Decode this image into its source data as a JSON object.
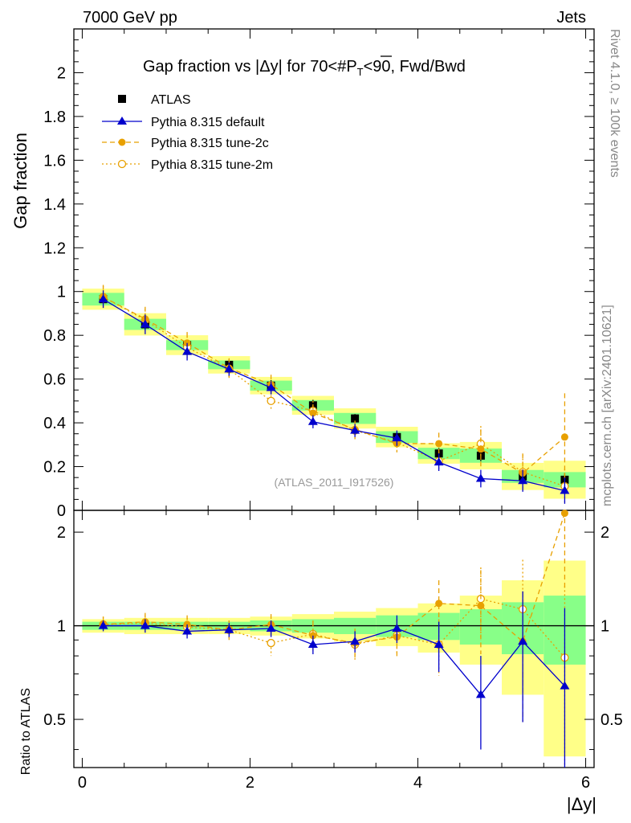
{
  "header": {
    "left": "7000 GeV pp",
    "right": "Jets"
  },
  "side": {
    "rivet": "Rivet 4.1.0, ≥ 100k events",
    "mcplots": "mcplots.cern.ch [arXiv:2401.10621]"
  },
  "chart_data": {
    "type": "line",
    "title": "Gap fraction vs |Δy| for 70<#P_T<90, Fwd/Bwd",
    "title_parts": {
      "main": "Gap fraction vs |Δy| for 70<#",
      "p": "P",
      "t": "T",
      "tail": "<90, Fwd/Bwd"
    },
    "watermark": "(ATLAS_2011_I917526)",
    "xlabel": "|Δy|",
    "ylabel": "Gap fraction",
    "ratio_ylabel": "Ratio to ATLAS",
    "xlim": [
      -0.1,
      6.1
    ],
    "ylim": [
      0,
      2.2
    ],
    "ratio_ylim": [
      0.35,
      2.35
    ],
    "x_ticks": [
      "0",
      "2",
      "4",
      "6"
    ],
    "y_ticks": [
      "0",
      "0.2",
      "0.4",
      "0.6",
      "0.8",
      "1",
      "1.2",
      "1.4",
      "1.6",
      "1.8",
      "2"
    ],
    "ratio_y_ticks": [
      "0.5",
      "1",
      "2"
    ],
    "x": [
      0.25,
      0.75,
      1.25,
      1.75,
      2.25,
      2.75,
      3.25,
      3.75,
      4.25,
      4.75,
      5.25,
      5.75
    ],
    "data": {
      "name": "ATLAS",
      "values": [
        0.965,
        0.85,
        0.755,
        0.665,
        0.57,
        0.48,
        0.42,
        0.335,
        0.26,
        0.25,
        0.155,
        0.14
      ],
      "errors": [
        0.02,
        0.025,
        0.025,
        0.025,
        0.025,
        0.025,
        0.02,
        0.02,
        0.025,
        0.025,
        0.03,
        0.03
      ]
    },
    "band": {
      "inner": [
        0.03,
        0.03,
        0.03,
        0.03,
        0.04,
        0.05,
        0.06,
        0.08,
        0.1,
        0.13,
        0.19,
        0.25
      ],
      "outer": [
        0.05,
        0.06,
        0.06,
        0.06,
        0.07,
        0.09,
        0.11,
        0.14,
        0.18,
        0.25,
        0.4,
        0.62
      ]
    },
    "series": [
      {
        "name": "Pythia 8.315 default",
        "color": "#0000cc",
        "marker": "triangle",
        "dash": "",
        "values": [
          0.965,
          0.85,
          0.725,
          0.645,
          0.56,
          0.405,
          0.365,
          0.33,
          0.22,
          0.145,
          0.135,
          0.09
        ],
        "errors": [
          0.04,
          0.045,
          0.04,
          0.03,
          0.03,
          0.03,
          0.03,
          0.035,
          0.04,
          0.04,
          0.05,
          0.06
        ],
        "ratio": [
          1.0,
          1.0,
          0.96,
          0.97,
          0.98,
          0.87,
          0.89,
          0.98,
          0.87,
          0.6,
          0.89,
          0.64
        ],
        "ratio_err": [
          0.04,
          0.05,
          0.05,
          0.05,
          0.06,
          0.06,
          0.07,
          0.1,
          0.16,
          0.2,
          0.4,
          0.5
        ]
      },
      {
        "name": "Pythia 8.315 tune-2c",
        "color": "#e8a000",
        "marker": "circle",
        "dash": "6,4",
        "values": [
          0.975,
          0.875,
          0.765,
          0.65,
          0.575,
          0.445,
          0.37,
          0.305,
          0.305,
          0.28,
          0.17,
          0.335
        ],
        "errors": [
          0.055,
          0.055,
          0.05,
          0.045,
          0.045,
          0.04,
          0.04,
          0.04,
          0.05,
          0.09,
          0.09,
          0.2
        ],
        "ratio": [
          1.01,
          1.03,
          1.01,
          0.97,
          1.01,
          0.93,
          0.88,
          0.92,
          1.18,
          1.16,
          0.89,
          2.3
        ],
        "ratio_err": [
          0.06,
          0.07,
          0.07,
          0.07,
          0.08,
          0.1,
          0.1,
          0.13,
          0.22,
          0.35,
          0.4,
          1.0
        ]
      },
      {
        "name": "Pythia 8.315 tune-2m",
        "color": "#e8a000",
        "marker": "open-circle",
        "dash": "2,3",
        "values": [
          0.975,
          0.87,
          0.745,
          0.645,
          0.5,
          0.455,
          0.365,
          0.31,
          0.225,
          0.305,
          0.175,
          0.11
        ],
        "errors": [
          0.05,
          0.05,
          0.05,
          0.045,
          0.045,
          0.045,
          0.04,
          0.04,
          0.045,
          0.08,
          0.08,
          0.08
        ],
        "ratio": [
          1.01,
          1.02,
          0.99,
          0.97,
          0.88,
          0.94,
          0.87,
          0.93,
          0.87,
          1.22,
          1.13,
          0.79
        ],
        "ratio_err": [
          0.06,
          0.06,
          0.07,
          0.07,
          0.08,
          0.1,
          0.1,
          0.12,
          0.18,
          0.32,
          0.5,
          0.55
        ]
      }
    ]
  }
}
